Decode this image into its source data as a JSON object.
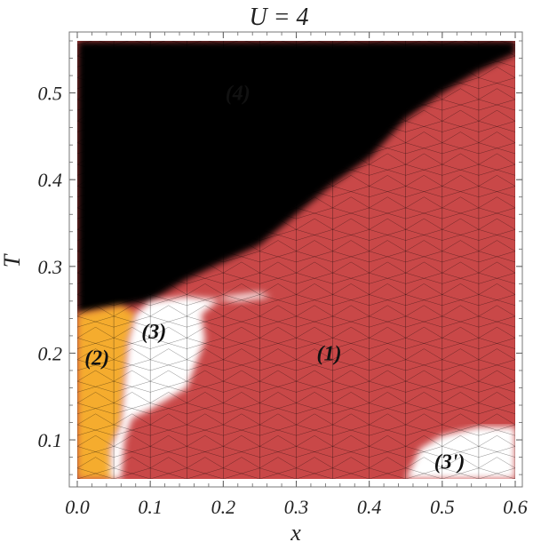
{
  "chart_data": {
    "type": "heatmap",
    "title": "U = 4",
    "xlabel": "x",
    "ylabel": "T",
    "xlim": [
      0.0,
      0.6
    ],
    "ylim": [
      0.055,
      0.56
    ],
    "x_ticks": [
      "0.0",
      "0.1",
      "0.2",
      "0.3",
      "0.4",
      "0.5",
      "0.6"
    ],
    "y_ticks": [
      "0.1",
      "0.2",
      "0.3",
      "0.4",
      "0.5"
    ],
    "grid": false,
    "colors": {
      "region_1": "#c94848",
      "region_2": "#f5ac2f",
      "region_3": "#ffffff",
      "region_4": "#000000",
      "mesh": "#000000"
    },
    "regions": [
      {
        "label": "(1)",
        "fill": "region_1",
        "label_at": [
          0.345,
          0.2
        ],
        "polygon": [
          [
            0.0,
            0.055
          ],
          [
            0.6,
            0.055
          ],
          [
            0.6,
            0.56
          ],
          [
            0.0,
            0.56
          ]
        ]
      },
      {
        "label": "(4)",
        "fill": "region_4",
        "label_at": [
          0.22,
          0.5
        ],
        "polygon": [
          [
            0.0,
            0.245
          ],
          [
            0.1,
            0.26
          ],
          [
            0.15,
            0.285
          ],
          [
            0.2,
            0.305
          ],
          [
            0.25,
            0.325
          ],
          [
            0.3,
            0.36
          ],
          [
            0.35,
            0.395
          ],
          [
            0.4,
            0.425
          ],
          [
            0.45,
            0.47
          ],
          [
            0.5,
            0.5
          ],
          [
            0.55,
            0.525
          ],
          [
            0.6,
            0.545
          ],
          [
            0.6,
            0.56
          ],
          [
            0.0,
            0.56
          ]
        ]
      },
      {
        "label": "(2)",
        "fill": "region_2",
        "label_at": [
          0.027,
          0.195
        ],
        "polygon": [
          [
            0.0,
            0.055
          ],
          [
            0.05,
            0.055
          ],
          [
            0.045,
            0.09
          ],
          [
            0.06,
            0.12
          ],
          [
            0.065,
            0.17
          ],
          [
            0.07,
            0.215
          ],
          [
            0.08,
            0.245
          ],
          [
            0.06,
            0.255
          ],
          [
            0.0,
            0.245
          ]
        ]
      },
      {
        "label": "(3)",
        "fill": "region_3",
        "label_at": [
          0.105,
          0.225
        ],
        "polygon": [
          [
            0.045,
            0.055
          ],
          [
            0.06,
            0.055
          ],
          [
            0.065,
            0.1
          ],
          [
            0.075,
            0.125
          ],
          [
            0.1,
            0.135
          ],
          [
            0.15,
            0.16
          ],
          [
            0.175,
            0.215
          ],
          [
            0.17,
            0.245
          ],
          [
            0.2,
            0.265
          ],
          [
            0.25,
            0.27
          ],
          [
            0.265,
            0.265
          ],
          [
            0.22,
            0.26
          ],
          [
            0.15,
            0.265
          ],
          [
            0.1,
            0.26
          ],
          [
            0.08,
            0.245
          ],
          [
            0.07,
            0.215
          ],
          [
            0.065,
            0.17
          ],
          [
            0.06,
            0.12
          ],
          [
            0.045,
            0.09
          ]
        ]
      },
      {
        "label": "(3')",
        "fill": "region_3",
        "label_at": [
          0.51,
          0.075
        ],
        "polygon": [
          [
            0.45,
            0.055
          ],
          [
            0.6,
            0.055
          ],
          [
            0.6,
            0.115
          ],
          [
            0.55,
            0.115
          ],
          [
            0.5,
            0.105
          ],
          [
            0.47,
            0.09
          ]
        ]
      }
    ],
    "mesh_grid": {
      "x_step": 0.05,
      "y_step": 0.0125
    }
  }
}
